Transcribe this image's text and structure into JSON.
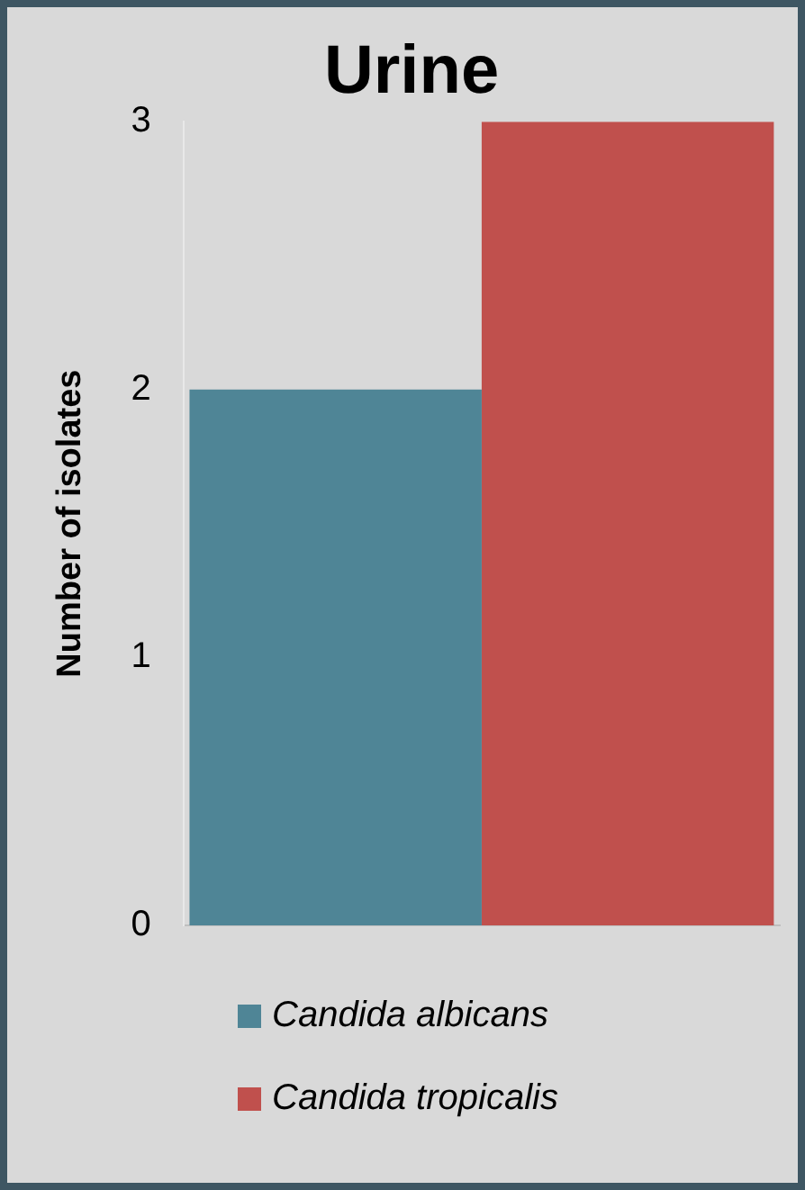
{
  "chart_data": {
    "type": "bar",
    "title": "Urine",
    "ylabel": "Number of isolates",
    "categories": [
      null
    ],
    "series": [
      {
        "name": "Candida albicans",
        "color": "#4f8596",
        "values": [
          2
        ]
      },
      {
        "name": "Candida tropicalis",
        "color": "#c0504d",
        "values": [
          3
        ]
      }
    ],
    "ylim": [
      0,
      3
    ],
    "yticks": [
      0,
      1,
      2,
      3
    ],
    "grid": false,
    "legend": "bottom"
  }
}
